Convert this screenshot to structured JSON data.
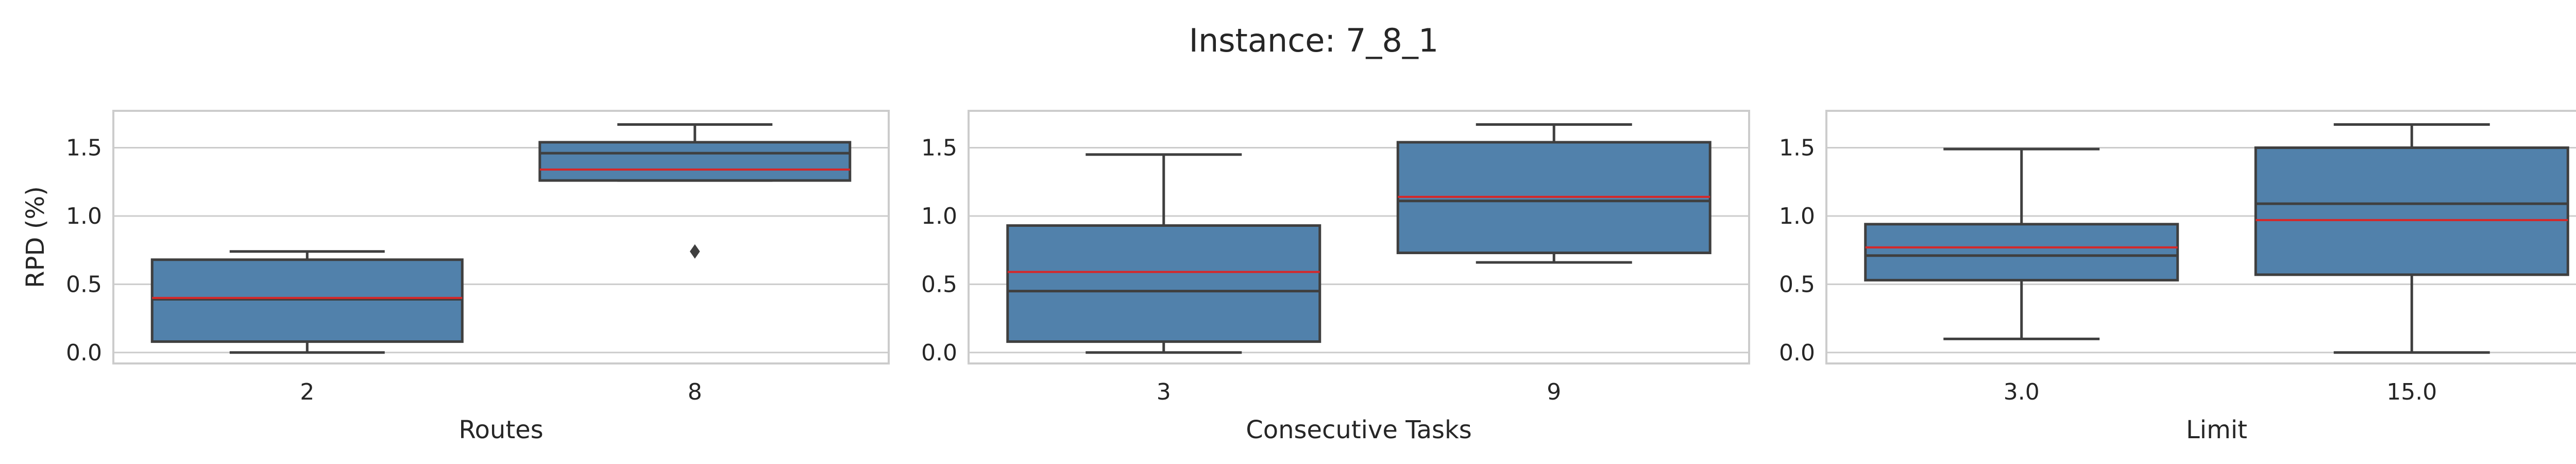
{
  "figure": {
    "title": "Instance: 7_8_1"
  },
  "chart_data": [
    {
      "type": "box",
      "xlabel": "Routes",
      "ylabel": "RPD (%)",
      "ylim": [
        -0.08,
        1.77
      ],
      "yticks": [
        "0.0",
        "0.5",
        "1.0",
        "1.5"
      ],
      "ytick_values": [
        0.0,
        0.5,
        1.0,
        1.5
      ],
      "grid": true,
      "categories": [
        "2",
        "8"
      ],
      "boxes": [
        {
          "whisker_low": 0.0,
          "q1": 0.08,
          "median": 0.39,
          "mean": 0.4,
          "q3": 0.68,
          "whisker_high": 0.74,
          "outliers": []
        },
        {
          "whisker_low": 1.26,
          "q1": 1.26,
          "median": 1.46,
          "mean": 1.34,
          "q3": 1.54,
          "whisker_high": 1.67,
          "outliers": [
            0.74
          ]
        }
      ]
    },
    {
      "type": "box",
      "xlabel": "Consecutive Tasks",
      "ylabel": "",
      "ylim": [
        -0.08,
        1.77
      ],
      "yticks": [
        "0.0",
        "0.5",
        "1.0",
        "1.5"
      ],
      "ytick_values": [
        0.0,
        0.5,
        1.0,
        1.5
      ],
      "grid": true,
      "categories": [
        "3",
        "9"
      ],
      "boxes": [
        {
          "whisker_low": 0.0,
          "q1": 0.08,
          "median": 0.45,
          "mean": 0.59,
          "q3": 0.93,
          "whisker_high": 1.45,
          "outliers": []
        },
        {
          "whisker_low": 0.66,
          "q1": 0.73,
          "median": 1.11,
          "mean": 1.14,
          "q3": 1.54,
          "whisker_high": 1.67,
          "outliers": []
        }
      ]
    },
    {
      "type": "box",
      "xlabel": "Limit",
      "ylabel": "",
      "ylim": [
        -0.08,
        1.77
      ],
      "yticks": [
        "0.0",
        "0.5",
        "1.0",
        "1.5"
      ],
      "ytick_values": [
        0.0,
        0.5,
        1.0,
        1.5
      ],
      "grid": true,
      "categories": [
        "3.0",
        "15.0"
      ],
      "boxes": [
        {
          "whisker_low": 0.1,
          "q1": 0.53,
          "median": 0.71,
          "mean": 0.77,
          "q3": 0.94,
          "whisker_high": 1.49,
          "outliers": []
        },
        {
          "whisker_low": 0.0,
          "q1": 0.57,
          "median": 1.09,
          "mean": 0.97,
          "q3": 1.5,
          "whisker_high": 1.67,
          "outliers": []
        }
      ]
    }
  ],
  "colors": {
    "box_fill": "#5181ab",
    "box_edge": "#3f3f3f",
    "mean_line": "#d62728",
    "grid": "#cccccc",
    "frame": "#cccccc",
    "text": "#262626"
  }
}
